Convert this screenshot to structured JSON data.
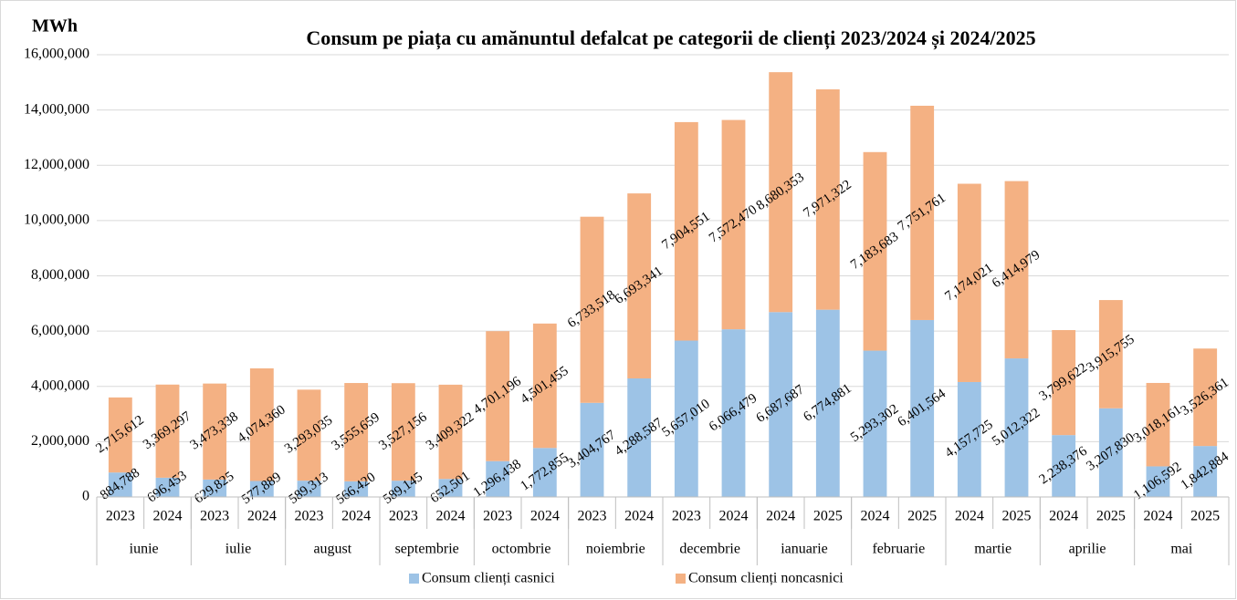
{
  "chart_data": {
    "type": "stacked_bar",
    "title": "Consum pe piața cu amănuntul defalcat pe categorii de clienți 2023/2024 și 2024/2025",
    "y_label": "MWh",
    "categories": [
      "2023",
      "2024",
      "2023",
      "2024",
      "2023",
      "2024",
      "2023",
      "2024",
      "2023",
      "2024",
      "2023",
      "2024",
      "2023",
      "2024",
      "2024",
      "2025",
      "2024",
      "2025",
      "2024",
      "2025",
      "2024",
      "2025",
      "2024",
      "2025"
    ],
    "groups": [
      "iunie",
      "iulie",
      "august",
      "septembrie",
      "octombrie",
      "noiembrie",
      "decembrie",
      "ianuarie",
      "februarie",
      "martie",
      "aprilie",
      "mai"
    ],
    "series": [
      {
        "name": "Consum clienți casnici",
        "color": "#9dc3e6",
        "values": [
          884788,
          696453,
          629825,
          577889,
          589313,
          566420,
          589145,
          652501,
          1296438,
          1772855,
          3404767,
          4288587,
          5657010,
          6066479,
          6687687,
          6774881,
          5293302,
          6401564,
          4157725,
          5012322,
          2238376,
          3207830,
          1106592,
          1842884
        ],
        "value_labels": [
          "884,788",
          "696,453",
          "629,825",
          "577,889",
          "589,313",
          "566,420",
          "589,145",
          "652,501",
          "1,296,438",
          "1,772,855",
          "3,404,767",
          "4,288,587",
          "5,657,010",
          "6,066,479",
          "6,687,687",
          "6,774,881",
          "5,293,302",
          "6,401,564",
          "4,157,725",
          "5,012,322",
          "2,238,376",
          "3,207,830",
          "1,106,592",
          "1,842,884"
        ]
      },
      {
        "name": "Consum clienți noncasnici",
        "color": "#f4b183",
        "values": [
          2715612,
          3369297,
          3473338,
          4074360,
          3293035,
          3555659,
          3527156,
          3409322,
          4701196,
          4501455,
          6733518,
          6693341,
          7904551,
          7572470,
          8680353,
          7971322,
          7183683,
          7751761,
          7174021,
          6414979,
          3799622,
          3915755,
          3018161,
          3526361
        ],
        "value_labels": [
          "2,715,612",
          "3,369,297",
          "3,473,338",
          "4,074,360",
          "3,293,035",
          "3,555,659",
          "3,527,156",
          "3,409,322",
          "4,701,196",
          "4,501,455",
          "6,733,518",
          "6,693,341",
          "7,904,551",
          "7,572,470",
          "8,680,353",
          "7,971,322",
          "7,183,683",
          "7,751,761",
          "7,174,021",
          "6,414,979",
          "3,799,622",
          "3,915,755",
          "3,018,161",
          "3,526,361"
        ]
      }
    ],
    "ylim": [
      0,
      16000000
    ],
    "yticks": [
      0,
      {
        "value": 2000000,
        "label": "2,000,000"
      },
      {
        "value": 4000000,
        "label": "4,000,000"
      },
      {
        "value": 6000000,
        "label": "6,000,000"
      },
      {
        "value": 8000000,
        "label": "8,000,000"
      },
      {
        "value": 10000000,
        "label": "10,000,000"
      },
      {
        "value": 12000000,
        "label": "12,000,000"
      },
      {
        "value": 14000000,
        "label": "14,000,000"
      },
      {
        "value": 16000000,
        "label": "16,000,000"
      }
    ],
    "grid": true,
    "legend": "bottom"
  }
}
